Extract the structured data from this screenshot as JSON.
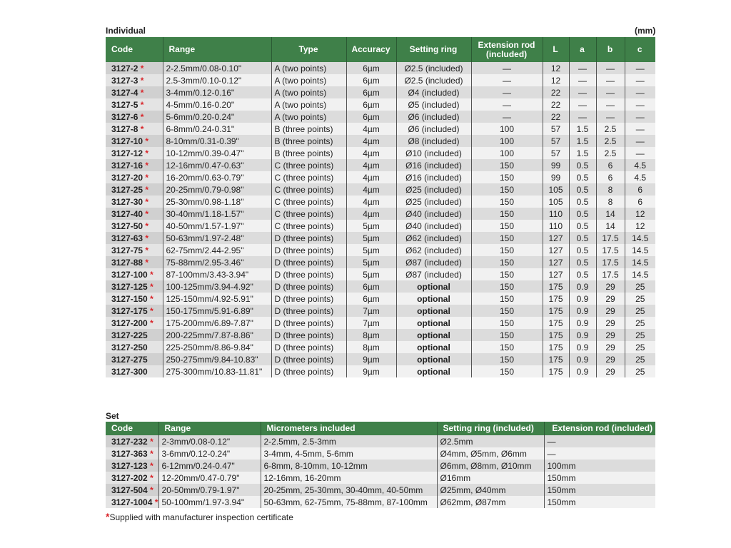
{
  "individual": {
    "title": "Individual",
    "unit": "(mm)",
    "headers": [
      "Code",
      "Range",
      "Type",
      "Accuracy",
      "Setting ring",
      "Extension rod (included)",
      "L",
      "a",
      "b",
      "c"
    ],
    "rows": [
      [
        "3127-2",
        true,
        "2-2.5mm/0.08-0.10\"",
        "A (two points)",
        "6µm",
        "Ø2.5 (included)",
        "—",
        "12",
        "—",
        "—",
        "—"
      ],
      [
        "3127-3",
        true,
        "2.5-3mm/0.10-0.12\"",
        "A (two points)",
        "6µm",
        "Ø2.5 (included)",
        "—",
        "12",
        "—",
        "—",
        "—"
      ],
      [
        "3127-4",
        true,
        "3-4mm/0.12-0.16\"",
        "A (two points)",
        "6µm",
        "Ø4 (included)",
        "—",
        "22",
        "—",
        "—",
        "—"
      ],
      [
        "3127-5",
        true,
        "4-5mm/0.16-0.20\"",
        "A (two points)",
        "6µm",
        "Ø5 (included)",
        "—",
        "22",
        "—",
        "—",
        "—"
      ],
      [
        "3127-6",
        true,
        "5-6mm/0.20-0.24\"",
        "A (two points)",
        "6µm",
        "Ø6 (included)",
        "—",
        "22",
        "—",
        "—",
        "—"
      ],
      [
        "3127-8",
        true,
        "6-8mm/0.24-0.31\"",
        "B (three points)",
        "4µm",
        "Ø6 (included)",
        "100",
        "57",
        "1.5",
        "2.5",
        "—"
      ],
      [
        "3127-10",
        true,
        "8-10mm/0.31-0.39\"",
        "B (three points)",
        "4µm",
        "Ø8 (included)",
        "100",
        "57",
        "1.5",
        "2.5",
        "—"
      ],
      [
        "3127-12",
        true,
        "10-12mm/0.39-0.47\"",
        "B (three points)",
        "4µm",
        "Ø10 (included)",
        "100",
        "57",
        "1.5",
        "2.5",
        "—"
      ],
      [
        "3127-16",
        true,
        "12-16mm/0.47-0.63\"",
        "C (three points)",
        "4µm",
        "Ø16 (included)",
        "150",
        "99",
        "0.5",
        "6",
        "4.5"
      ],
      [
        "3127-20",
        true,
        "16-20mm/0.63-0.79\"",
        "C (three points)",
        "4µm",
        "Ø16 (included)",
        "150",
        "99",
        "0.5",
        "6",
        "4.5"
      ],
      [
        "3127-25",
        true,
        "20-25mm/0.79-0.98\"",
        "C (three points)",
        "4µm",
        "Ø25 (included)",
        "150",
        "105",
        "0.5",
        "8",
        "6"
      ],
      [
        "3127-30",
        true,
        "25-30mm/0.98-1.18\"",
        "C (three points)",
        "4µm",
        "Ø25 (included)",
        "150",
        "105",
        "0.5",
        "8",
        "6"
      ],
      [
        "3127-40",
        true,
        "30-40mm/1.18-1.57\"",
        "C (three points)",
        "4µm",
        "Ø40 (included)",
        "150",
        "110",
        "0.5",
        "14",
        "12"
      ],
      [
        "3127-50",
        true,
        "40-50mm/1.57-1.97\"",
        "C (three points)",
        "5µm",
        "Ø40 (included)",
        "150",
        "110",
        "0.5",
        "14",
        "12"
      ],
      [
        "3127-63",
        true,
        "50-63mm/1.97-2.48\"",
        "D (three points)",
        "5µm",
        "Ø62 (included)",
        "150",
        "127",
        "0.5",
        "17.5",
        "14.5"
      ],
      [
        "3127-75",
        true,
        "62-75mm/2.44-2.95\"",
        "D (three points)",
        "5µm",
        "Ø62 (included)",
        "150",
        "127",
        "0.5",
        "17.5",
        "14.5"
      ],
      [
        "3127-88",
        true,
        "75-88mm/2.95-3.46\"",
        "D (three points)",
        "5µm",
        "Ø87 (included)",
        "150",
        "127",
        "0.5",
        "17.5",
        "14.5"
      ],
      [
        "3127-100",
        true,
        "87-100mm/3.43-3.94\"",
        "D (three points)",
        "5µm",
        "Ø87 (included)",
        "150",
        "127",
        "0.5",
        "17.5",
        "14.5"
      ],
      [
        "3127-125",
        true,
        "100-125mm/3.94-4.92\"",
        "D (three points)",
        "6µm",
        "optional",
        "150",
        "175",
        "0.9",
        "29",
        "25"
      ],
      [
        "3127-150",
        true,
        "125-150mm/4.92-5.91\"",
        "D (three points)",
        "6µm",
        "optional",
        "150",
        "175",
        "0.9",
        "29",
        "25"
      ],
      [
        "3127-175",
        true,
        "150-175mm/5.91-6.89\"",
        "D (three points)",
        "7µm",
        "optional",
        "150",
        "175",
        "0.9",
        "29",
        "25"
      ],
      [
        "3127-200",
        true,
        "175-200mm/6.89-7.87\"",
        "D (three points)",
        "7µm",
        "optional",
        "150",
        "175",
        "0.9",
        "29",
        "25"
      ],
      [
        "3127-225",
        false,
        "200-225mm/7.87-8.86\"",
        "D (three points)",
        "8µm",
        "optional",
        "150",
        "175",
        "0.9",
        "29",
        "25"
      ],
      [
        "3127-250",
        false,
        "225-250mm/8.86-9.84\"",
        "D (three points)",
        "8µm",
        "optional",
        "150",
        "175",
        "0.9",
        "29",
        "25"
      ],
      [
        "3127-275",
        false,
        "250-275mm/9.84-10.83\"",
        "D (three points)",
        "9µm",
        "optional",
        "150",
        "175",
        "0.9",
        "29",
        "25"
      ],
      [
        "3127-300",
        false,
        "275-300mm/10.83-11.81\"",
        "D (three points)",
        "9µm",
        "optional",
        "150",
        "175",
        "0.9",
        "29",
        "25"
      ]
    ]
  },
  "set": {
    "title": "Set",
    "headers": [
      "Code",
      "Range",
      "Micrometers included",
      "Setting ring (included)",
      "Extension rod (included)"
    ],
    "rows": [
      [
        "3127-232",
        true,
        "2-3mm/0.08-0.12\"",
        "2-2.5mm, 2.5-3mm",
        "Ø2.5mm",
        "—"
      ],
      [
        "3127-363",
        true,
        "3-6mm/0.12-0.24\"",
        "3-4mm, 4-5mm, 5-6mm",
        "Ø4mm, Ø5mm, Ø6mm",
        "—"
      ],
      [
        "3127-123",
        true,
        "6-12mm/0.24-0.47\"",
        "6-8mm, 8-10mm, 10-12mm",
        "Ø6mm, Ø8mm, Ø10mm",
        "100mm"
      ],
      [
        "3127-202",
        true,
        "12-20mm/0.47-0.79\"",
        "12-16mm, 16-20mm",
        "Ø16mm",
        "150mm"
      ],
      [
        "3127-504",
        true,
        "20-50mm/0.79-1.97\"",
        "20-25mm, 25-30mm, 30-40mm, 40-50mm",
        "Ø25mm, Ø40mm",
        "150mm"
      ],
      [
        "3127-1004",
        true,
        "50-100mm/1.97-3.94\"",
        "50-63mm, 62-75mm, 75-88mm, 87-100mm",
        "Ø62mm, Ø87mm",
        "150mm"
      ]
    ]
  },
  "footnote": {
    "star": "*",
    "text": "Supplied with manufacturer inspection certificate"
  },
  "colors": {
    "header_green": "#3f8049",
    "star_red": "#d9252a"
  }
}
